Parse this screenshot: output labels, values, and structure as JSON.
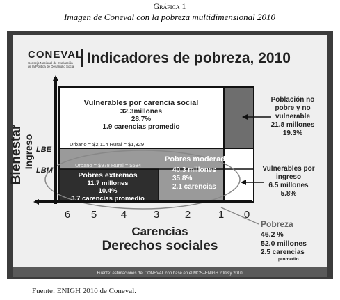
{
  "header": {
    "label": "Gráfica 1",
    "title": "Imagen de Coneval con la pobreza multidimensional 2010"
  },
  "slide": {
    "logo": "CONEVAL",
    "logo_subtitle": [
      "Consejo Nacional de Evaluación",
      "de la Política de Desarrollo Social"
    ],
    "title": "Indicadores de pobreza, 2010",
    "y_axis": [
      "Bienestar",
      "Ingreso"
    ],
    "lines": [
      "LBE",
      "LBM"
    ],
    "x_ticks": [
      "6",
      "5",
      "4",
      "3",
      "2",
      "1",
      "0"
    ],
    "x_axis": [
      "Carencias",
      "Derechos sociales"
    ],
    "thresholds": [
      "Urbano = $2,114  Rural = $1,329",
      "Urbano = $978  Rural = $684"
    ],
    "vulnerables_carencia": [
      "Vulnerables por carencia social",
      "32.3millones",
      "28.7%",
      "1.9 carencias promedio"
    ],
    "no_pobre": [
      "Población no",
      "pobre y no",
      "vulnerable",
      "21.8 millones",
      "19.3%"
    ],
    "vulnerables_ingreso": [
      "Vulnerables por",
      "ingreso",
      "6.5 millones",
      "5.8%"
    ],
    "moderados": [
      "Pobres moderados",
      "40.3 millones",
      "35.8%",
      "2.1 carencias"
    ],
    "extremos": [
      "Pobres extremos",
      "11.7 millones",
      "10.4%",
      "3.7 carencias promedio"
    ],
    "pobreza": [
      "Pobreza",
      "46.2 %",
      "52.0 millones",
      "2.5 carencias",
      "promedio"
    ],
    "source": "Fuente: estimaciones del CONEVAL con base en el MCS–ENIGH 2008 y 2010"
  },
  "footer": "Fuente: ENIGH 2010 de Coneval."
}
